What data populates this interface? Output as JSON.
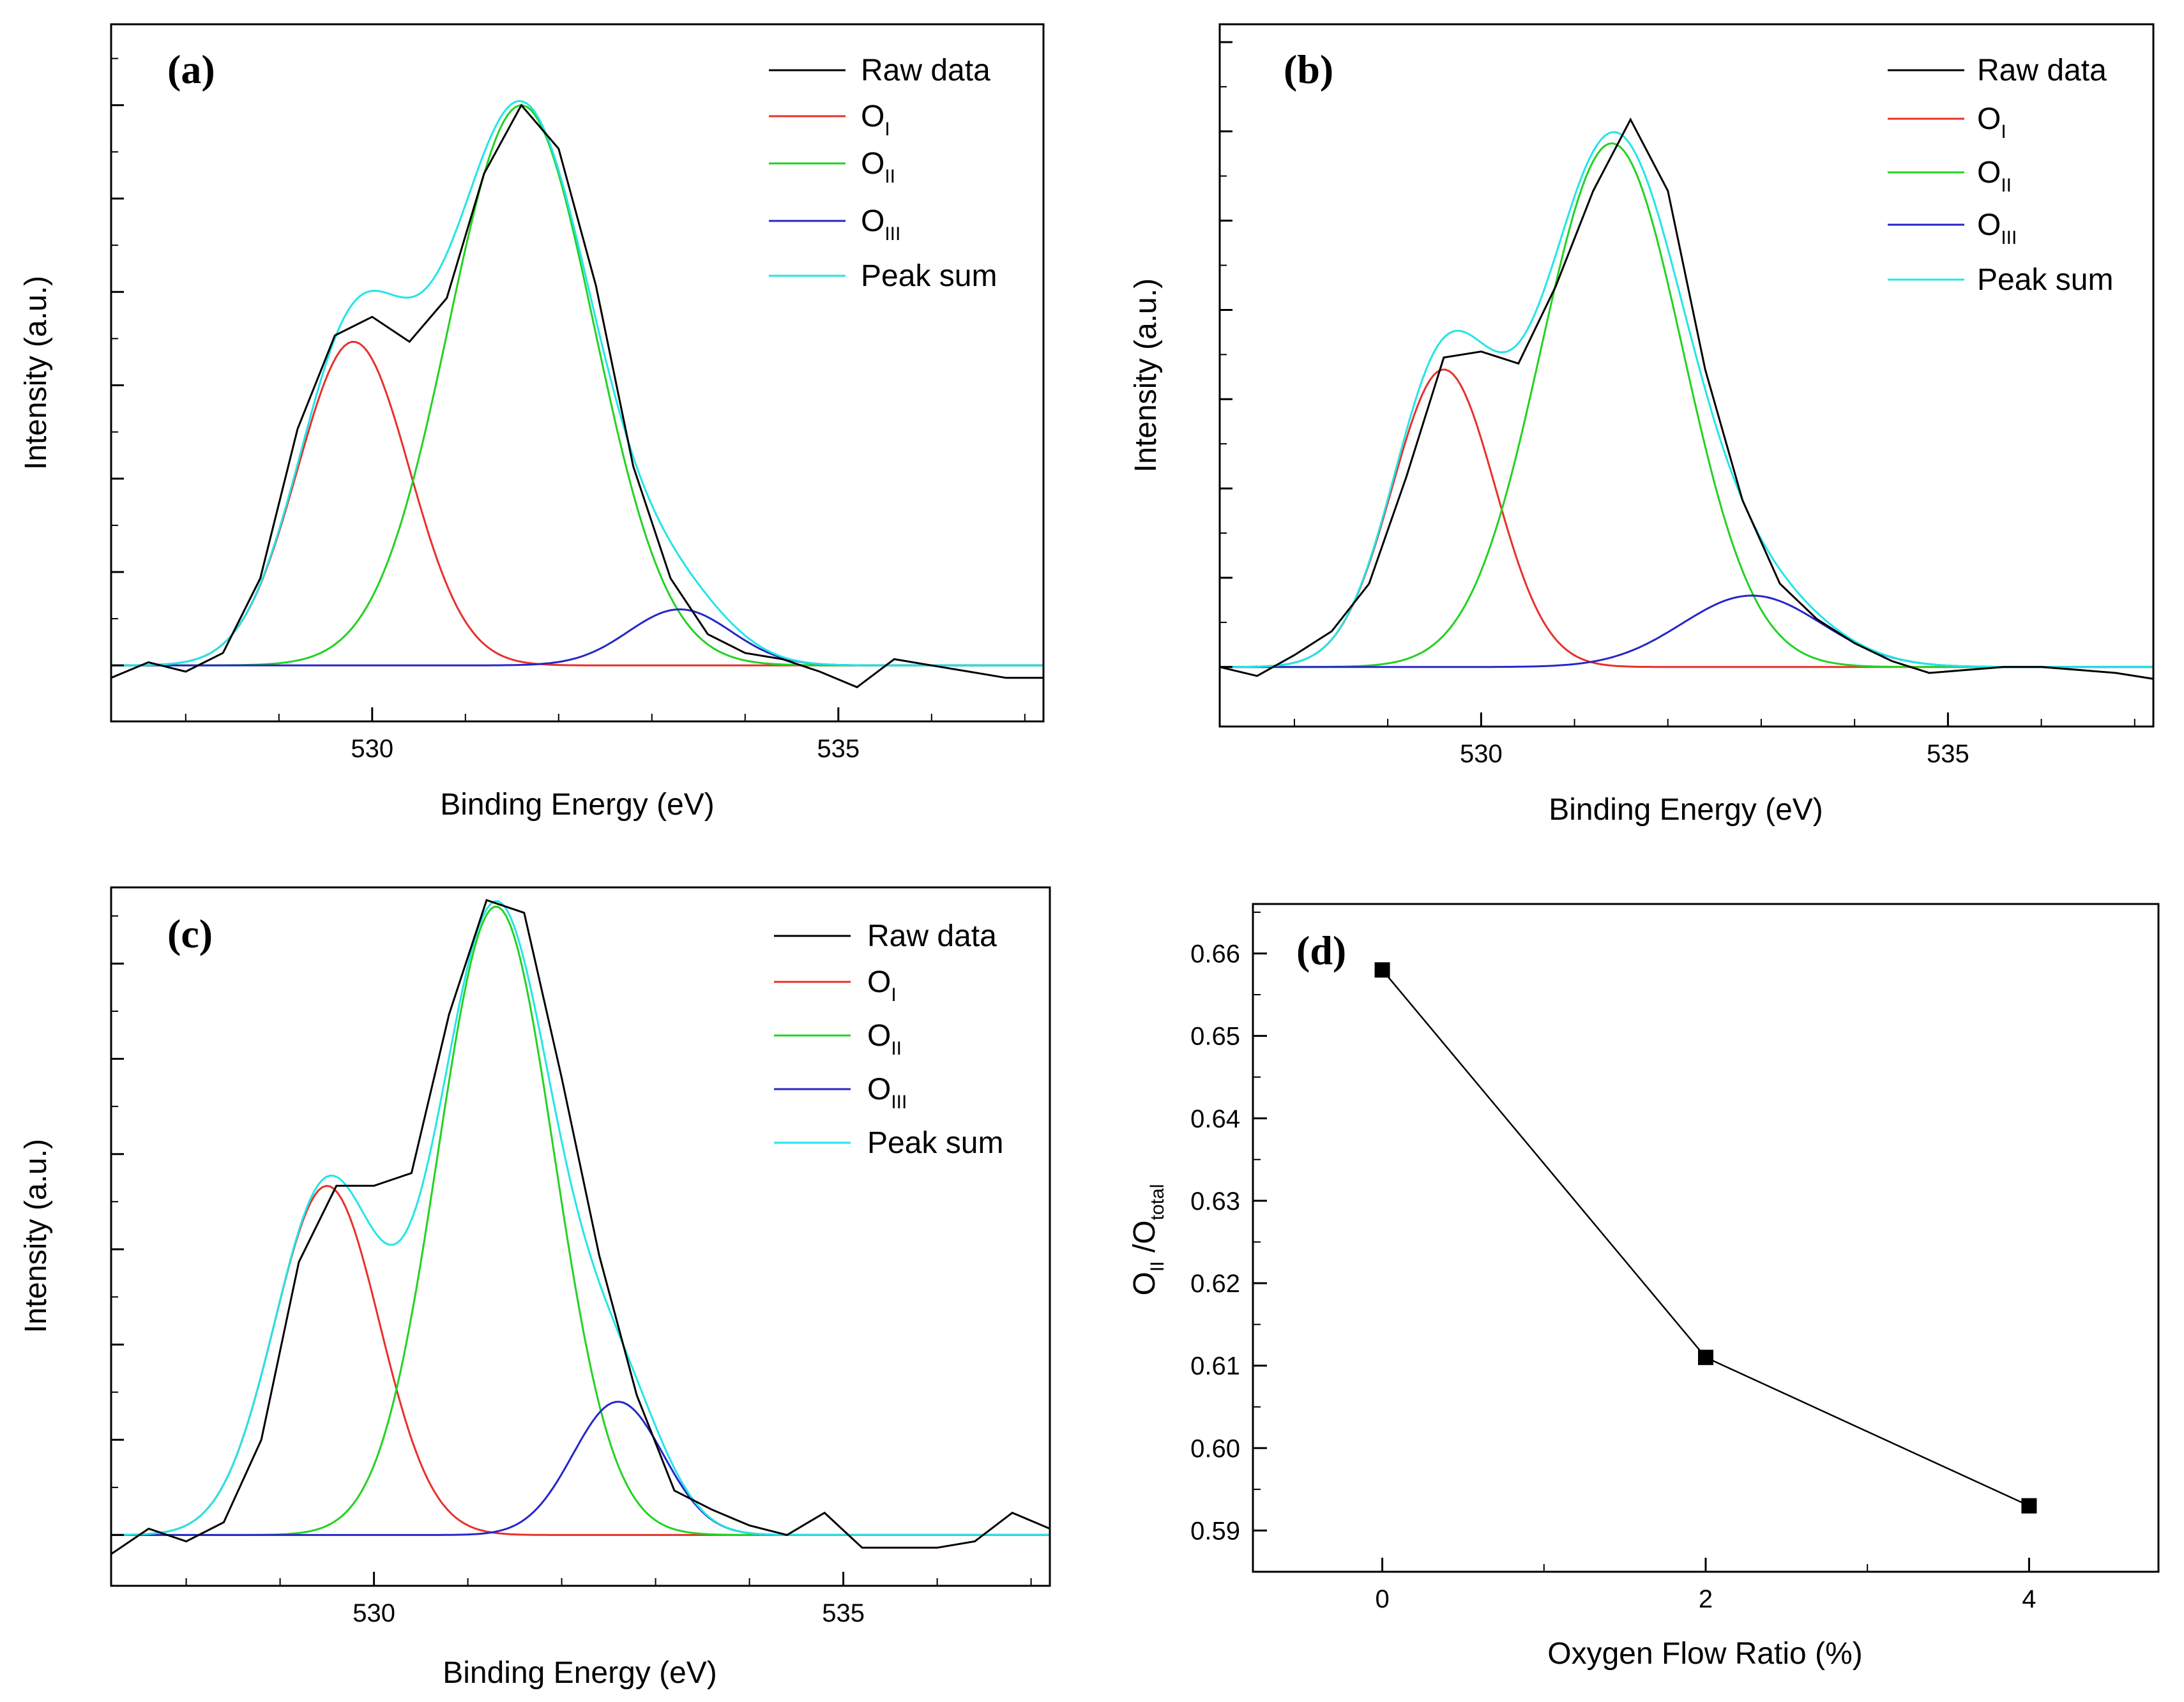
{
  "colors": {
    "raw": "#000000",
    "OI": "#e8302a",
    "OII": "#22d222",
    "OIII": "#2626c8",
    "peak_sum": "#22e5e8",
    "axis": "#000000"
  },
  "chart_data": [
    {
      "panel": "(a)",
      "type": "line",
      "xlabel": "Binding Energy (eV)",
      "ylabel": "Intensity (a.u.)",
      "xlim": [
        527.2,
        537.2
      ],
      "ylim": [
        -0.09,
        1.03
      ],
      "x_ticks": [
        530,
        535
      ],
      "x_tick_labels": [
        "530",
        "535"
      ],
      "legend": [
        {
          "key": "raw",
          "label": "Raw data"
        },
        {
          "key": "OI",
          "label": "O",
          "sub": "I"
        },
        {
          "key": "OII",
          "label": "O",
          "sub": "II"
        },
        {
          "key": "OIII",
          "label": "O",
          "sub": "III"
        },
        {
          "key": "peak_sum",
          "label": "Peak sum"
        }
      ],
      "baseline": 0.0,
      "components": [
        {
          "key": "OI",
          "center": 529.8,
          "height": 0.52,
          "sigma": 0.6
        },
        {
          "key": "OII",
          "center": 531.6,
          "height": 0.9,
          "sigma": 0.78
        },
        {
          "key": "OIII",
          "center": 533.3,
          "height": 0.09,
          "sigma": 0.55
        }
      ],
      "raw_data": {
        "x": [
          527.2,
          527.6,
          528.0,
          528.4,
          528.8,
          529.2,
          529.6,
          530.0,
          530.4,
          530.8,
          531.2,
          531.6,
          532.0,
          532.4,
          532.8,
          533.2,
          533.6,
          534.0,
          534.4,
          534.8,
          535.2,
          535.6,
          536.0,
          536.4,
          536.8,
          537.2
        ],
        "y": [
          -0.02,
          0.005,
          -0.01,
          0.02,
          0.14,
          0.38,
          0.53,
          0.56,
          0.52,
          0.59,
          0.79,
          0.9,
          0.83,
          0.61,
          0.32,
          0.14,
          0.05,
          0.02,
          0.01,
          -0.01,
          -0.035,
          0.01,
          0.0,
          -0.01,
          -0.02,
          -0.02
        ]
      }
    },
    {
      "panel": "(b)",
      "type": "line",
      "xlabel": "Binding Energy (eV)",
      "ylabel": "Intensity (a.u.)",
      "xlim": [
        527.2,
        537.2
      ],
      "ylim": [
        -0.1,
        1.08
      ],
      "x_ticks": [
        530,
        535
      ],
      "x_tick_labels": [
        "530",
        "535"
      ],
      "legend": [
        {
          "key": "raw",
          "label": "Raw data"
        },
        {
          "key": "OI",
          "label": "O",
          "sub": "I"
        },
        {
          "key": "OII",
          "label": "O",
          "sub": "II"
        },
        {
          "key": "OIII",
          "label": "O",
          "sub": "III"
        },
        {
          "key": "peak_sum",
          "label": "Peak sum"
        }
      ],
      "baseline": 0.0,
      "components": [
        {
          "key": "OI",
          "center": 529.6,
          "height": 0.5,
          "sigma": 0.55
        },
        {
          "key": "OII",
          "center": 531.4,
          "height": 0.88,
          "sigma": 0.76
        },
        {
          "key": "OIII",
          "center": 532.9,
          "height": 0.12,
          "sigma": 0.75
        }
      ],
      "raw_data": {
        "x": [
          527.2,
          527.6,
          528.0,
          528.4,
          528.8,
          529.2,
          529.6,
          530.0,
          530.4,
          530.8,
          531.2,
          531.6,
          532.0,
          532.4,
          532.8,
          533.2,
          533.6,
          534.0,
          534.4,
          534.8,
          535.2,
          535.6,
          536.0,
          536.4,
          536.8,
          537.2
        ],
        "y": [
          0.0,
          -0.015,
          0.02,
          0.06,
          0.14,
          0.32,
          0.52,
          0.53,
          0.51,
          0.64,
          0.8,
          0.92,
          0.8,
          0.5,
          0.28,
          0.14,
          0.08,
          0.04,
          0.01,
          -0.01,
          -0.005,
          0.0,
          0.0,
          -0.005,
          -0.01,
          -0.02
        ]
      }
    },
    {
      "panel": "(c)",
      "type": "line",
      "xlabel": "Binding Energy (eV)",
      "ylabel": "Intensity (a.u.)",
      "xlim": [
        527.2,
        537.2
      ],
      "ylim": [
        -0.08,
        1.02
      ],
      "x_ticks": [
        530,
        535
      ],
      "x_tick_labels": [
        "530",
        "535"
      ],
      "legend": [
        {
          "key": "raw",
          "label": "Raw data"
        },
        {
          "key": "OI",
          "label": "O",
          "sub": "I"
        },
        {
          "key": "OII",
          "label": "O",
          "sub": "II"
        },
        {
          "key": "OIII",
          "label": "O",
          "sub": "III"
        },
        {
          "key": "peak_sum",
          "label": "Peak sum"
        }
      ],
      "baseline": 0.0,
      "components": [
        {
          "key": "OI",
          "center": 529.5,
          "height": 0.55,
          "sigma": 0.56
        },
        {
          "key": "OII",
          "center": 531.3,
          "height": 0.99,
          "sigma": 0.62
        },
        {
          "key": "OIII",
          "center": 532.6,
          "height": 0.21,
          "sigma": 0.48
        }
      ],
      "raw_data": {
        "x": [
          527.2,
          527.6,
          528.0,
          528.4,
          528.8,
          529.2,
          529.6,
          530.0,
          530.4,
          530.8,
          531.2,
          531.6,
          532.0,
          532.4,
          532.8,
          533.2,
          533.6,
          534.0,
          534.4,
          534.8,
          535.2,
          535.6,
          536.0,
          536.4,
          536.8,
          537.2
        ],
        "y": [
          -0.03,
          0.01,
          -0.01,
          0.02,
          0.15,
          0.43,
          0.55,
          0.55,
          0.57,
          0.82,
          1.0,
          0.98,
          0.72,
          0.44,
          0.22,
          0.07,
          0.04,
          0.015,
          0.0,
          0.035,
          -0.02,
          -0.02,
          -0.02,
          -0.01,
          0.035,
          0.01
        ]
      }
    },
    {
      "panel": "(d)",
      "type": "line",
      "xlabel": "Oxygen Flow Ratio (%)",
      "ylabel": "O",
      "ylabel_sub1": "II",
      "ylabel_mid": " /O",
      "ylabel_sub2": "total",
      "x": [
        0,
        2,
        4
      ],
      "y": [
        0.658,
        0.611,
        0.593
      ],
      "xlim": [
        -0.8,
        4.8
      ],
      "ylim": [
        0.585,
        0.666
      ],
      "x_ticks": [
        0,
        2,
        4
      ],
      "x_tick_labels": [
        "0",
        "2",
        "4"
      ],
      "y_ticks": [
        0.59,
        0.6,
        0.61,
        0.62,
        0.63,
        0.64,
        0.65,
        0.66
      ],
      "y_tick_labels": [
        "0.59",
        "0.60",
        "0.61",
        "0.62",
        "0.63",
        "0.64",
        "0.65",
        "0.66"
      ]
    }
  ]
}
